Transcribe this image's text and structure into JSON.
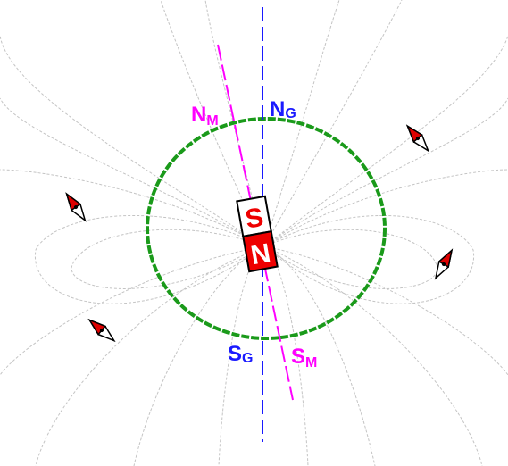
{
  "labels": {
    "north_magnetic": {
      "main": "N",
      "sub": "M"
    },
    "north_geographic": {
      "main": "N",
      "sub": "G"
    },
    "south_geographic": {
      "main": "S",
      "sub": "G"
    },
    "south_magnetic": {
      "main": "S",
      "sub": "M"
    }
  },
  "magnet": {
    "top_pole": "S",
    "bottom_pole": "N"
  },
  "colors": {
    "magnetic_axis": "#ff00ff",
    "geographic_axis": "#1a1aff",
    "earth_outline": "#1a9a1a",
    "field_lines": "#bdbdbd",
    "magnet_red": "#ee0000",
    "compass_red": "#dd0000"
  },
  "icons": [
    "compass-needle-icon",
    "bar-magnet-icon"
  ]
}
